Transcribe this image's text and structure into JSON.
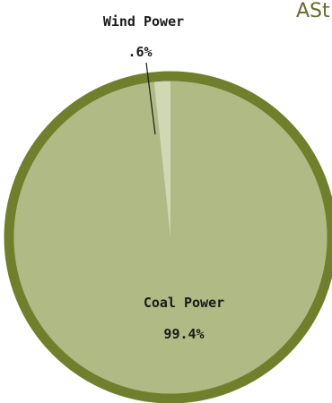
{
  "chart_data": {
    "type": "pie",
    "title_partial": "ASt",
    "slices": [
      {
        "label": "Coal Power",
        "value_label": "99.4%",
        "value": 99.4,
        "color": "#b0ba84"
      },
      {
        "label": "Wind Power",
        "value_label": ".6%",
        "value": 0.6,
        "color": "#cfd7b3"
      }
    ],
    "border_color": "#6f7f2c",
    "leader_color": "#1a1a1a"
  }
}
